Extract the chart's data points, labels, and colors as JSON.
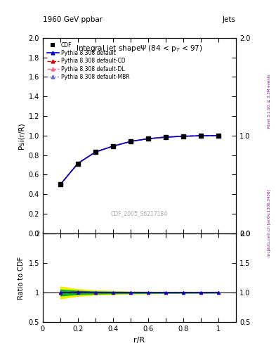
{
  "title_top": "1960 GeV ppbar",
  "title_top_right": "Jets",
  "title_main": "Integral jet shapeΨ (84 < p$_{T}$ < 97)",
  "watermark": "CDF_2005_S6217184",
  "right_label": "mcplots.cern.ch [arXiv:1306.3436]",
  "right_label2": "Rivet 3.1.10, ≥ 3.3M events",
  "ylabel_main": "Psi(r/R)",
  "ylabel_ratio": "Ratio to CDF",
  "xlabel": "r/R",
  "xlim": [
    0.0,
    1.1
  ],
  "ylim_main": [
    0.0,
    2.0
  ],
  "ylim_ratio": [
    0.5,
    2.0
  ],
  "x_data": [
    0.1,
    0.2,
    0.3,
    0.4,
    0.5,
    0.6,
    0.7,
    0.8,
    0.9,
    1.0
  ],
  "cdf_y": [
    0.5,
    0.71,
    0.83,
    0.89,
    0.94,
    0.97,
    0.985,
    0.993,
    1.0,
    1.0
  ],
  "cdf_yerr": [
    0.025,
    0.02,
    0.015,
    0.012,
    0.009,
    0.007,
    0.005,
    0.004,
    0.003,
    0.002
  ],
  "pythia_default_y": [
    0.5,
    0.715,
    0.832,
    0.892,
    0.94,
    0.968,
    0.984,
    0.993,
    0.998,
    1.0
  ],
  "pythia_cd_y": [
    0.5,
    0.718,
    0.833,
    0.892,
    0.94,
    0.968,
    0.984,
    0.993,
    0.998,
    1.0
  ],
  "pythia_dl_y": [
    0.5,
    0.714,
    0.831,
    0.891,
    0.94,
    0.968,
    0.984,
    0.993,
    0.998,
    1.0
  ],
  "pythia_mbr_y": [
    0.5,
    0.713,
    0.83,
    0.89,
    0.939,
    0.967,
    0.984,
    0.993,
    0.998,
    1.0
  ],
  "ratio_default": [
    1.0,
    1.007,
    1.003,
    1.002,
    1.0,
    1.0,
    1.0,
    1.0,
    1.0,
    1.0
  ],
  "ratio_cd": [
    1.0,
    1.01,
    1.003,
    1.002,
    1.0,
    1.0,
    1.0,
    1.0,
    1.0,
    1.0
  ],
  "ratio_dl": [
    1.0,
    1.005,
    1.001,
    1.001,
    1.0,
    1.0,
    1.0,
    1.0,
    1.0,
    1.0
  ],
  "ratio_mbr": [
    1.0,
    1.004,
    1.001,
    1.001,
    1.0,
    1.0,
    1.0,
    1.0,
    1.0,
    1.0
  ],
  "color_default": "#0000cc",
  "color_cd": "#cc0000",
  "color_dl": "#ff6688",
  "color_mbr": "#6666cc",
  "color_cdf": "#000000",
  "band_green": "#00bb00",
  "band_yellow": "#eeee00",
  "bg_color": "#ffffff",
  "y_ticks_main": [
    0.0,
    0.2,
    0.4,
    0.6,
    0.8,
    1.0,
    1.2,
    1.4,
    1.6,
    1.8,
    2.0
  ],
  "y_ticks_ratio": [
    0.5,
    1.0,
    1.5,
    2.0
  ]
}
